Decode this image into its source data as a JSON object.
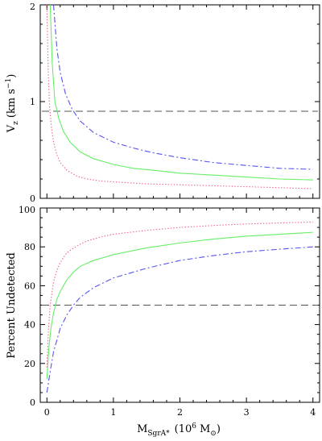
{
  "chart_data": [
    {
      "type": "line",
      "panel": "top",
      "ylabel": "V_z (km s^-1)",
      "ylabel_main": "V",
      "ylabel_sub": "z",
      "ylabel_units": "(km s",
      "ylabel_exp": "−1",
      "ylabel_close": ")",
      "xlim": [
        -0.1,
        4.1
      ],
      "ylim": [
        0,
        2
      ],
      "yticks": [
        0,
        1,
        2
      ],
      "ytick_labels": [
        "0",
        "1",
        "2"
      ],
      "xticks": [
        0,
        1,
        2,
        3,
        4
      ],
      "reference_line": 0.9,
      "series": [
        {
          "style": "solid",
          "color": "#66ee66",
          "x": [
            0.05,
            0.08,
            0.12,
            0.18,
            0.25,
            0.35,
            0.5,
            0.7,
            1.0,
            1.3,
            1.6,
            2.0,
            2.5,
            3.0,
            3.5,
            4.0
          ],
          "y": [
            2.0,
            1.4,
            1.0,
            0.82,
            0.69,
            0.58,
            0.48,
            0.41,
            0.35,
            0.31,
            0.29,
            0.26,
            0.24,
            0.22,
            0.2,
            0.19
          ]
        },
        {
          "style": "dashdot",
          "color": "#5555ee",
          "x": [
            0.1,
            0.15,
            0.2,
            0.28,
            0.38,
            0.5,
            0.7,
            1.0,
            1.3,
            1.6,
            2.0,
            2.5,
            3.0,
            3.5,
            4.0
          ],
          "y": [
            2.0,
            1.55,
            1.3,
            1.08,
            0.92,
            0.8,
            0.68,
            0.58,
            0.52,
            0.47,
            0.42,
            0.37,
            0.34,
            0.31,
            0.3
          ]
        },
        {
          "style": "dotted",
          "color": "#ee5577",
          "x": [
            0.0,
            0.02,
            0.04,
            0.07,
            0.1,
            0.15,
            0.2,
            0.3,
            0.45,
            0.6,
            0.8,
            1.0,
            1.5,
            2.0,
            2.5,
            3.0,
            3.5,
            4.0
          ],
          "y": [
            2.0,
            1.3,
            0.95,
            0.72,
            0.58,
            0.45,
            0.37,
            0.29,
            0.23,
            0.2,
            0.18,
            0.17,
            0.15,
            0.14,
            0.13,
            0.12,
            0.11,
            0.1
          ]
        }
      ]
    },
    {
      "type": "line",
      "panel": "bottom",
      "ylabel": "Percent Undetected",
      "xlabel_main": "M",
      "xlabel_sub": "SgrA*",
      "xlabel_units": "(10",
      "xlabel_exp": "6",
      "xlabel_after": "M",
      "xlabel_sun_sub": "⊙",
      "xlabel_close": ")",
      "xlim": [
        -0.1,
        4.1
      ],
      "ylim": [
        0,
        100
      ],
      "yticks": [
        0,
        20,
        40,
        60,
        80,
        100
      ],
      "ytick_labels": [
        "0",
        "20",
        "40",
        "60",
        "80",
        "100"
      ],
      "xticks": [
        0,
        1,
        2,
        3,
        4
      ],
      "xtick_labels": [
        "0",
        "1",
        "2",
        "3",
        "4"
      ],
      "reference_line": 50,
      "series": [
        {
          "style": "solid",
          "color": "#66ee66",
          "x": [
            0.0,
            0.03,
            0.06,
            0.1,
            0.15,
            0.2,
            0.3,
            0.4,
            0.5,
            0.7,
            1.0,
            1.5,
            2.0,
            2.5,
            3.0,
            3.5,
            4.0
          ],
          "y": [
            12,
            28,
            38,
            46,
            53,
            57,
            63,
            67,
            70,
            73,
            76,
            79.5,
            82,
            84,
            85.5,
            86.5,
            87.5
          ]
        },
        {
          "style": "dashdot",
          "color": "#5555ee",
          "x": [
            0.0,
            0.05,
            0.1,
            0.2,
            0.3,
            0.4,
            0.5,
            0.7,
            1.0,
            1.5,
            2.0,
            2.5,
            3.0,
            3.5,
            4.0
          ],
          "y": [
            5,
            16,
            26,
            38,
            45,
            50,
            54,
            59,
            64,
            69,
            73,
            75.5,
            77.5,
            78.8,
            80
          ]
        },
        {
          "style": "dotted",
          "color": "#ee5577",
          "x": [
            0.0,
            0.02,
            0.05,
            0.1,
            0.15,
            0.2,
            0.3,
            0.45,
            0.6,
            0.8,
            1.0,
            1.5,
            2.0,
            2.5,
            3.0,
            3.5,
            4.0
          ],
          "y": [
            18,
            35,
            50,
            62,
            68,
            72,
            77,
            80.5,
            83,
            85,
            86.5,
            88.5,
            90,
            91,
            91.8,
            92.3,
            92.8
          ]
        }
      ]
    }
  ]
}
